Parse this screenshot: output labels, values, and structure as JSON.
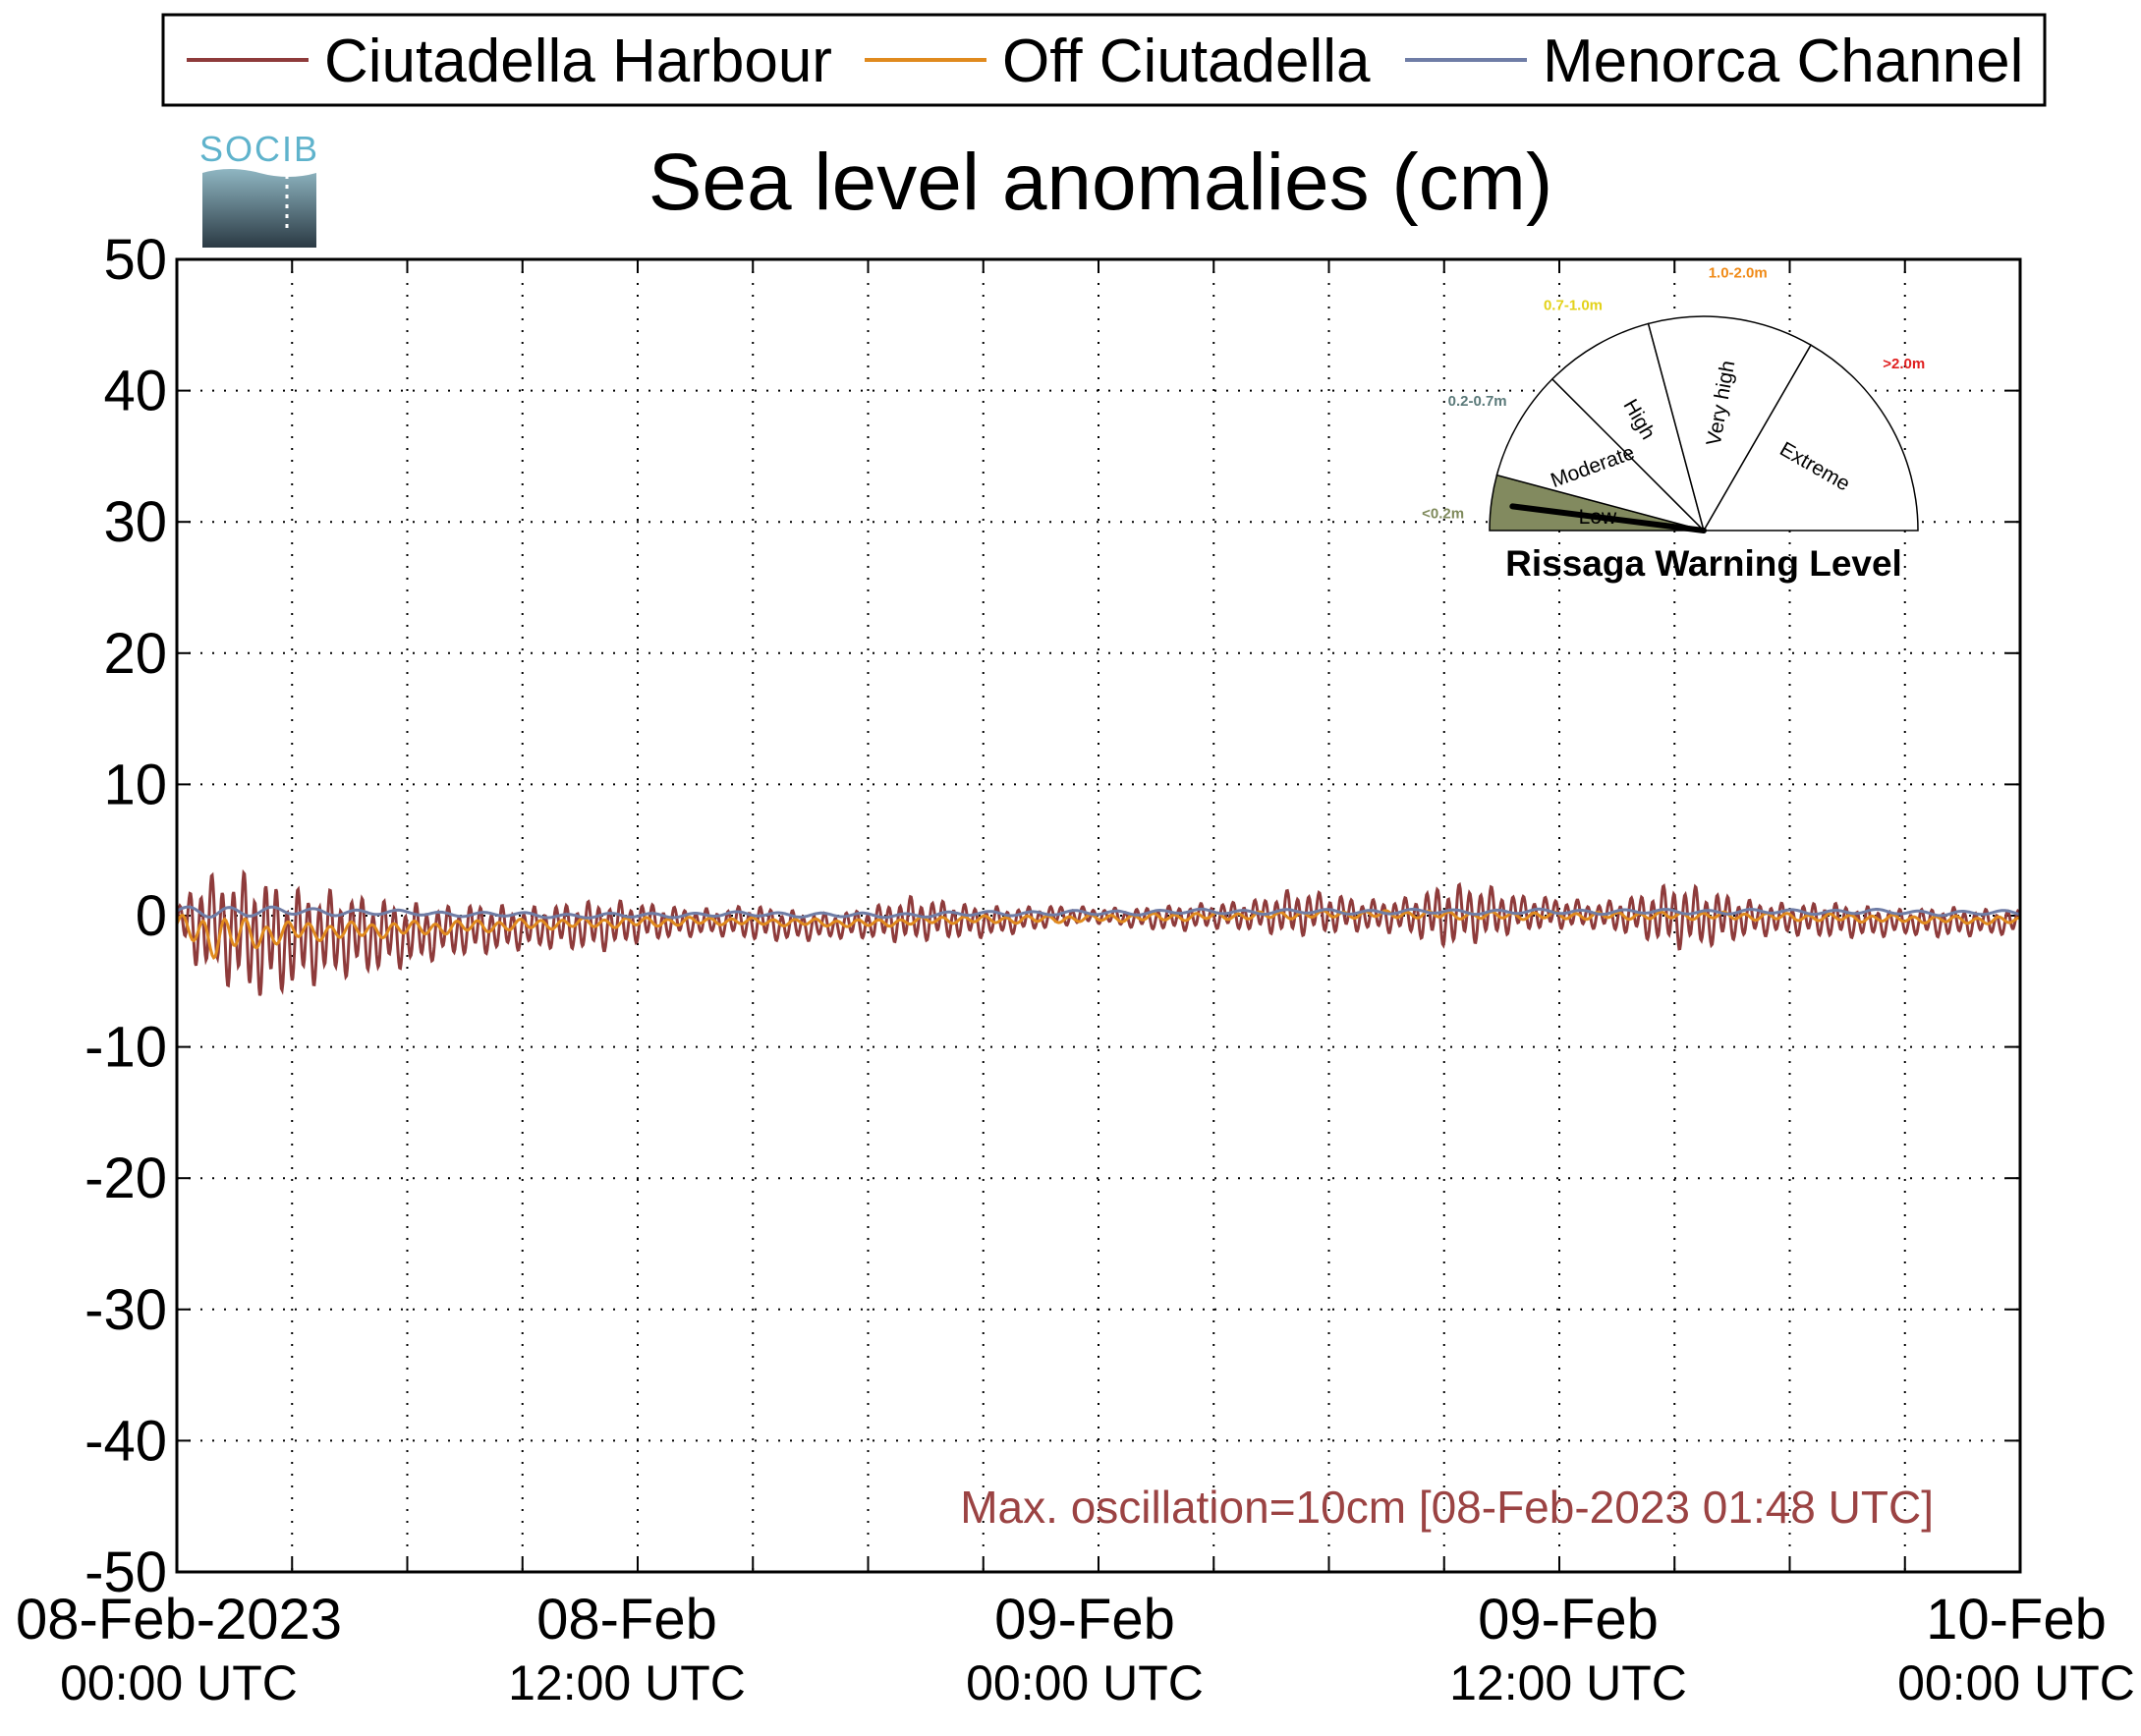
{
  "logo": {
    "text": "SOCIB"
  },
  "chart_data": {
    "type": "line",
    "title": "Sea level anomalies (cm)",
    "xlabel": "",
    "ylabel": "",
    "ylim": [
      -50,
      50
    ],
    "xlim": [
      "2023-02-08 00:00 UTC",
      "2023-02-10 00:00 UTC"
    ],
    "yticks": [
      "50",
      "40",
      "30",
      "20",
      "10",
      "0",
      "-10",
      "-20",
      "-30",
      "-40",
      "-50"
    ],
    "xticks": [
      {
        "date": "08-Feb-2023",
        "time": "00:00 UTC"
      },
      {
        "date": "08-Feb",
        "time": "12:00 UTC"
      },
      {
        "date": "09-Feb",
        "time": "00:00 UTC"
      },
      {
        "date": "09-Feb",
        "time": "12:00 UTC"
      },
      {
        "date": "10-Feb",
        "time": "00:00 UTC"
      }
    ],
    "grid": true,
    "legend_position": "top",
    "series": [
      {
        "name": "Ciutadella Harbour",
        "color": "#8e3b3b",
        "x_hours": [
          0,
          0.5,
          1,
          1.5,
          2,
          2.5,
          3,
          4,
          5,
          6,
          7,
          8,
          9,
          10,
          11,
          12,
          13,
          14,
          15,
          16,
          17,
          18,
          19,
          20,
          21,
          22,
          23,
          24,
          25,
          26,
          27,
          28,
          29,
          30,
          31,
          32,
          33,
          34,
          35,
          36,
          37,
          38,
          39,
          40,
          41,
          42,
          43,
          44,
          45,
          46,
          47,
          48
        ],
        "amplitude_cm": [
          1.0,
          3.5,
          4.0,
          4.5,
          5.0,
          4.5,
          4.0,
          3.5,
          3.0,
          2.5,
          2.0,
          2.0,
          1.6,
          1.8,
          2.0,
          1.6,
          1.2,
          1.0,
          1.4,
          1.2,
          1.0,
          1.2,
          1.8,
          1.5,
          1.2,
          1.0,
          0.8,
          0.6,
          0.8,
          1.0,
          1.0,
          1.2,
          1.8,
          1.6,
          1.2,
          1.4,
          2.5,
          2.2,
          1.4,
          1.2,
          1.0,
          1.6,
          2.6,
          2.2,
          1.4,
          1.2,
          1.4,
          1.2,
          1.0,
          1.2,
          1.0,
          1.0
        ],
        "mean_cm": [
          -0.5,
          -0.5,
          -0.8,
          -1.2,
          -1.5,
          -1.8,
          -1.8,
          -1.5,
          -1.5,
          -1.5,
          -1.2,
          -1.0,
          -1.0,
          -0.8,
          -0.8,
          -0.5,
          -0.5,
          -0.5,
          -0.5,
          -0.8,
          -0.8,
          -0.6,
          -0.3,
          -0.3,
          -0.5,
          -0.3,
          0.0,
          0.0,
          -0.2,
          -0.2,
          0.0,
          0.0,
          0.2,
          0.2,
          0.0,
          0.0,
          0.0,
          0.2,
          0.2,
          0.2,
          0.0,
          0.0,
          0.0,
          -0.2,
          -0.2,
          -0.3,
          -0.3,
          -0.5,
          -0.5,
          -0.5,
          -0.5,
          -0.5
        ]
      },
      {
        "name": "Off Ciutadella",
        "color": "#e08a1e",
        "x_hours": [
          0,
          1,
          2,
          3,
          4,
          6,
          8,
          10,
          12,
          14,
          16,
          18,
          20,
          22,
          24,
          26,
          28,
          30,
          32,
          34,
          36,
          38,
          40,
          42,
          44,
          46,
          48
        ],
        "amplitude_cm": [
          0.8,
          1.8,
          1.2,
          0.8,
          0.7,
          0.6,
          0.5,
          0.4,
          0.4,
          0.3,
          0.3,
          0.3,
          0.3,
          0.3,
          0.3,
          0.3,
          0.3,
          0.3,
          0.3,
          0.3,
          0.3,
          0.3,
          0.3,
          0.3,
          0.3,
          0.3,
          0.3
        ],
        "mean_cm": [
          -0.8,
          -1.5,
          -1.5,
          -1.2,
          -1.2,
          -1.0,
          -0.8,
          -0.6,
          -0.5,
          -0.4,
          -0.5,
          -0.6,
          -0.3,
          -0.3,
          -0.2,
          -0.1,
          0.0,
          0.1,
          0.1,
          0.0,
          0.0,
          0.0,
          0.0,
          -0.1,
          -0.2,
          -0.3,
          -0.4
        ]
      },
      {
        "name": "Menorca Channel",
        "color": "#6f7da6",
        "x_hours": [
          0,
          1,
          2,
          4,
          6,
          8,
          10,
          12,
          14,
          16,
          18,
          20,
          22,
          24,
          26,
          28,
          30,
          32,
          34,
          36,
          38,
          40,
          42,
          44,
          46,
          48
        ],
        "amplitude_cm": [
          0.3,
          0.6,
          0.4,
          0.3,
          0.2,
          0.2,
          0.2,
          0.2,
          0.2,
          0.2,
          0.2,
          0.2,
          0.2,
          0.2,
          0.2,
          0.2,
          0.2,
          0.2,
          0.2,
          0.2,
          0.2,
          0.2,
          0.2,
          0.2,
          0.2,
          0.2
        ],
        "mean_cm": [
          0.3,
          0.4,
          0.3,
          0.3,
          0.2,
          0.1,
          0.0,
          0.0,
          0.1,
          0.1,
          0.0,
          0.1,
          0.2,
          0.2,
          0.3,
          0.3,
          0.3,
          0.3,
          0.3,
          0.3,
          0.3,
          0.3,
          0.3,
          0.3,
          0.2,
          0.2
        ]
      }
    ],
    "annotation": {
      "text": "Max. oscillation=10cm [08-Feb-2023 01:48 UTC]",
      "color": "#9b4343"
    },
    "warning_gauge": {
      "title": "Rissaga Warning Level",
      "current_level": "Low",
      "current_value_fraction": 0.04,
      "active_fill": "#828a5f",
      "sectors": [
        {
          "label": "Low",
          "range": "<0.2m",
          "range_color": "#7f8a5c"
        },
        {
          "label": "Moderate",
          "range": "0.2-0.7m",
          "range_color": "#5b7a7a"
        },
        {
          "label": "High",
          "range": "0.7-1.0m",
          "range_color": "#e3d21a"
        },
        {
          "label": "Very high",
          "range": "1.0-2.0m",
          "range_color": "#f08a16"
        },
        {
          "label": "Extreme",
          "range": ">2.0m",
          "range_color": "#e02020"
        }
      ]
    }
  }
}
